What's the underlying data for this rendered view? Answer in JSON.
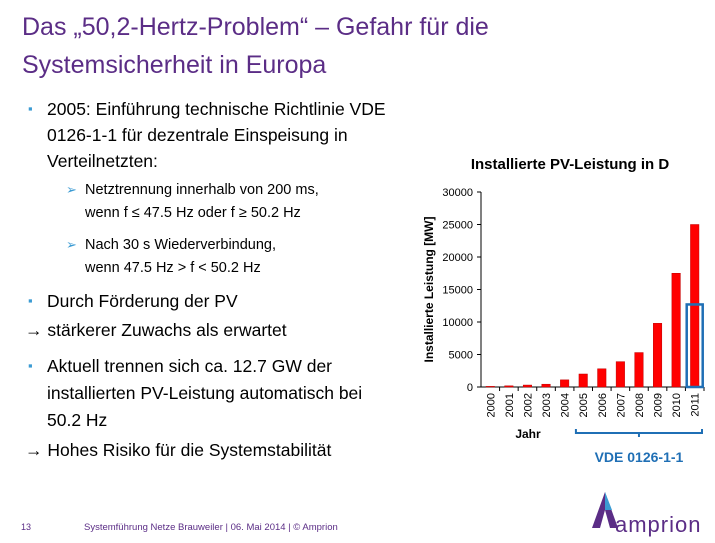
{
  "title": {
    "line1": "Das „50,2-Hertz-Problem“ – Gefahr für die",
    "line2": "Systemsicherheit in Europa"
  },
  "bullets": {
    "b1": {
      "marker": "▪",
      "lines": [
        "2005: Einführung technische Richtlinie VDE",
        "0126-1-1 für dezentrale Einspeisung in",
        "Verteilnetzten:"
      ]
    },
    "sub1": {
      "marker": "➢",
      "lines": [
        "Netztrennung innerhalb von 200 ms,",
        "wenn f ≤ 47.5 Hz oder f ≥ 50.2 Hz"
      ]
    },
    "sub2": {
      "marker": "➢",
      "lines": [
        "Nach 30 s Wiederverbindung,",
        "wenn 47.5 Hz > f < 50.2 Hz"
      ]
    },
    "b2": {
      "marker": "▪",
      "text": "Durch Förderung der PV"
    },
    "arrow1": "→ stärkerer Zuwachs als erwartet",
    "b3": {
      "marker": "▪",
      "lines": [
        "Aktuell trennen sich ca. 12.7 GW der",
        "installierten PV-Leistung automatisch bei",
        "50.2 Hz"
      ]
    },
    "arrow2": "→ Hohes Risiko für die Systemstabilität"
  },
  "chart_data": {
    "type": "bar",
    "title": "Installierte PV-Leistung in D",
    "ylabel": "Installierte Leistung [MW]",
    "xlabel": "Jahr",
    "categories": [
      "2000",
      "2001",
      "2002",
      "2003",
      "2004",
      "2005",
      "2006",
      "2007",
      "2008",
      "2009",
      "2010",
      "2011"
    ],
    "values": [
      100,
      180,
      300,
      430,
      1100,
      2000,
      2800,
      3900,
      5300,
      9800,
      17500,
      25000
    ],
    "ylim": [
      0,
      30000
    ],
    "yticks": [
      0,
      5000,
      10000,
      15000,
      20000,
      25000,
      30000
    ],
    "bar_color": "#ff0000",
    "grid": false,
    "annotation": {
      "label": "VDE 0126-1-1",
      "bracket_from": "2005",
      "bracket_to": "2011",
      "highlight_category": "2011",
      "highlight_value": 12700,
      "color": "#1f6fb5"
    }
  },
  "footer": {
    "page": "13",
    "text": "Systemführung Netze Brauweiler | 06. Mai 2014 | © Amprion"
  },
  "logo": {
    "name": "amprion"
  }
}
